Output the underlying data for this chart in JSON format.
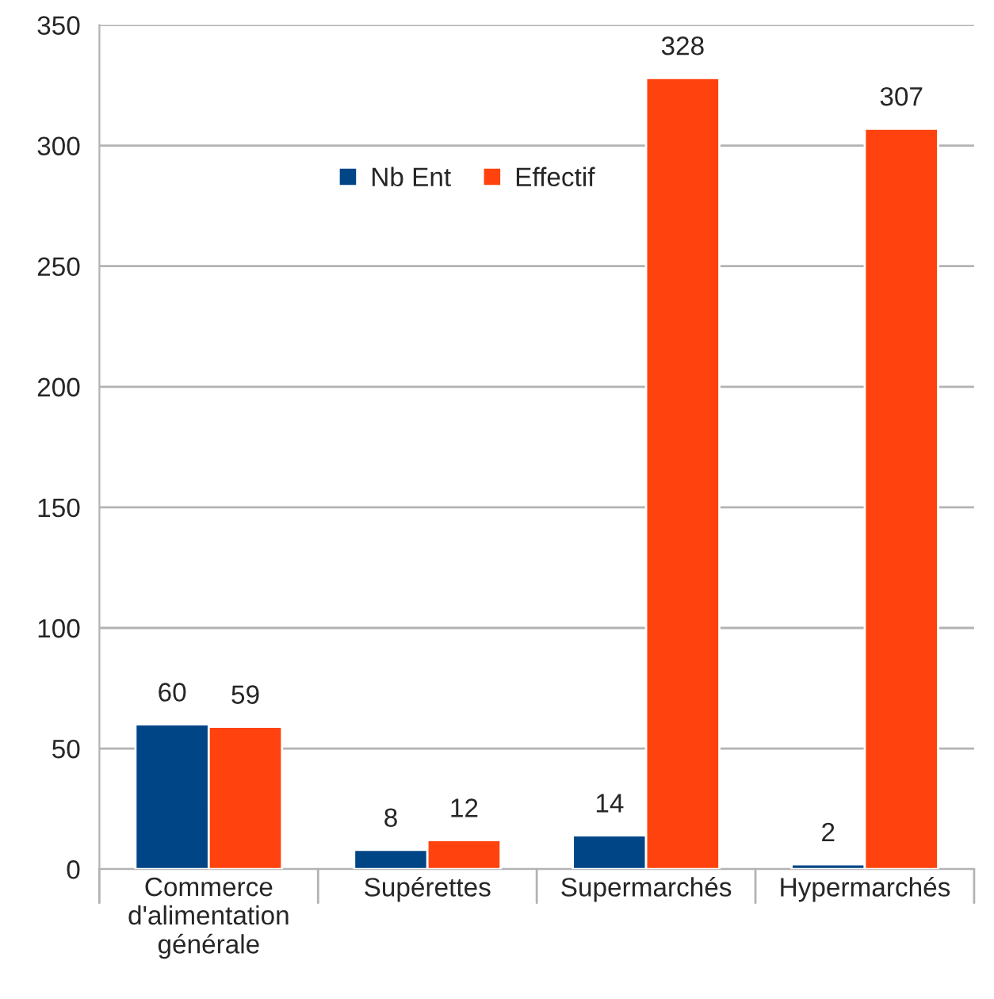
{
  "chart_data": {
    "type": "bar",
    "categories": [
      "Commerce d'alimentation générale",
      "Supérettes",
      "Supermarchés",
      "Hypermarchés"
    ],
    "series": [
      {
        "name": "Nb Ent",
        "color": "#004586",
        "values": [
          60,
          8,
          14,
          2
        ]
      },
      {
        "name": "Effectif",
        "color": "#ff420e",
        "values": [
          59,
          12,
          328,
          307
        ]
      }
    ],
    "ylim": [
      0,
      350
    ],
    "yticks": [
      0,
      50,
      100,
      150,
      200,
      250,
      300,
      350
    ],
    "grid": "y",
    "legend": "top",
    "data_labels": true
  }
}
